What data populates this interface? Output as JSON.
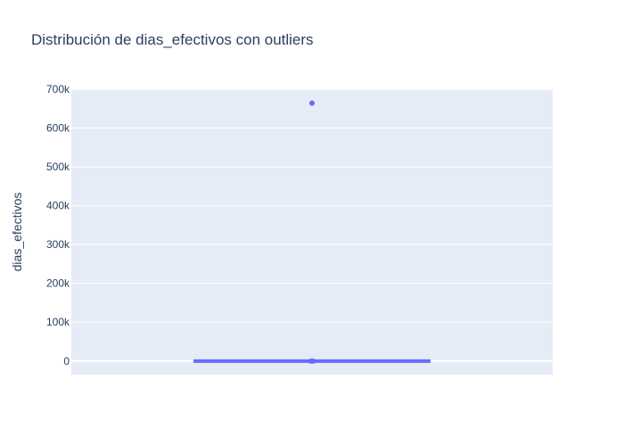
{
  "chart_data": {
    "type": "box",
    "title": "Distribución de dias_efectivos con outliers",
    "xlabel": "",
    "ylabel": "dias_efectivos",
    "ylim": [
      -35000,
      700000
    ],
    "y_ticks": [
      {
        "value": 0,
        "label": "0"
      },
      {
        "value": 100000,
        "label": "100k"
      },
      {
        "value": 200000,
        "label": "200k"
      },
      {
        "value": 300000,
        "label": "300k"
      },
      {
        "value": 400000,
        "label": "400k"
      },
      {
        "value": 500000,
        "label": "500k"
      },
      {
        "value": 600000,
        "label": "600k"
      },
      {
        "value": 700000,
        "label": "700k"
      }
    ],
    "grid": true,
    "legend": false,
    "series": [
      {
        "color": "#636efa",
        "box": {
          "min": 0,
          "q1": 0,
          "median": 0,
          "q3": 1000,
          "max": 1000
        },
        "outliers": [
          664000
        ]
      }
    ],
    "colors": {
      "plot_background": "#e5ecf6",
      "grid": "#ffffff",
      "text": "#2a3f5f",
      "trace": "#636efa"
    }
  }
}
